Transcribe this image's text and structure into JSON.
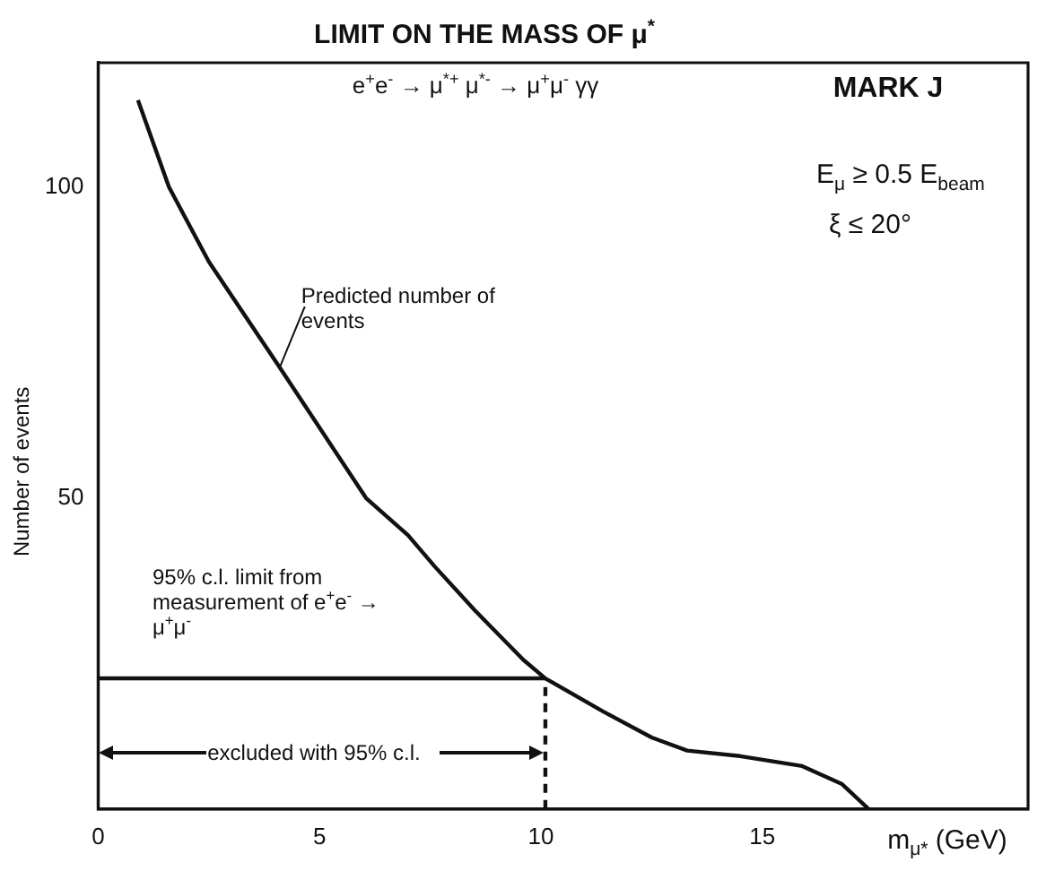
{
  "chart_data": {
    "type": "line",
    "title": "LIMIT ON THE MASS OF μ$^{*}$",
    "xlabel": "m$_{μ*}$ (GeV)",
    "ylabel": "Number of events",
    "xlim": [
      0,
      21
    ],
    "ylim": [
      0,
      120
    ],
    "xticks": [
      0,
      5,
      10,
      15
    ],
    "yticks": [
      50,
      100
    ],
    "grid": false,
    "legend": false,
    "marker": "none",
    "series": [
      {
        "color": "#111111",
        "x": [
          0.9,
          1.6,
          2.5,
          4.1,
          6.05,
          7,
          7.6,
          8.5,
          9.6,
          10.1,
          11.4,
          12.5,
          13.3,
          14.5,
          15.9,
          16.8,
          17.4
        ],
        "values": [
          114,
          100,
          88,
          71,
          50,
          44,
          39,
          32,
          24,
          21,
          15.7,
          11.5,
          9.4,
          8.5,
          6.9,
          4,
          0
        ]
      },
      {
        "color": "#111111",
        "x": [
          0,
          10.1
        ],
        "values": [
          21,
          21
        ]
      },
      {
        "color": "#111111",
        "x": [
          10.1,
          10.1
        ],
        "values": [
          0,
          21
        ],
        "line_style": "dashed"
      }
    ],
    "annotations": [
      "e$^{+}$e$^{-}$ → μ$^{*+}$ μ$^{*-}$ → μ$^{+}$μ$^{-}$ γγ",
      "MARK J",
      "E$_{μ}$ ≥ 0.5 E$_{beam}$",
      "ξ ≤ 20°",
      {
        "text": "Predicted number of events",
        "x": 4.1,
        "y": 71
      },
      "95% c.l. limit from measurement of e$^{+}$e$^{-}$ → μ$^{+}$μ$^{-}$",
      "excluded with 95% c.l."
    ]
  }
}
